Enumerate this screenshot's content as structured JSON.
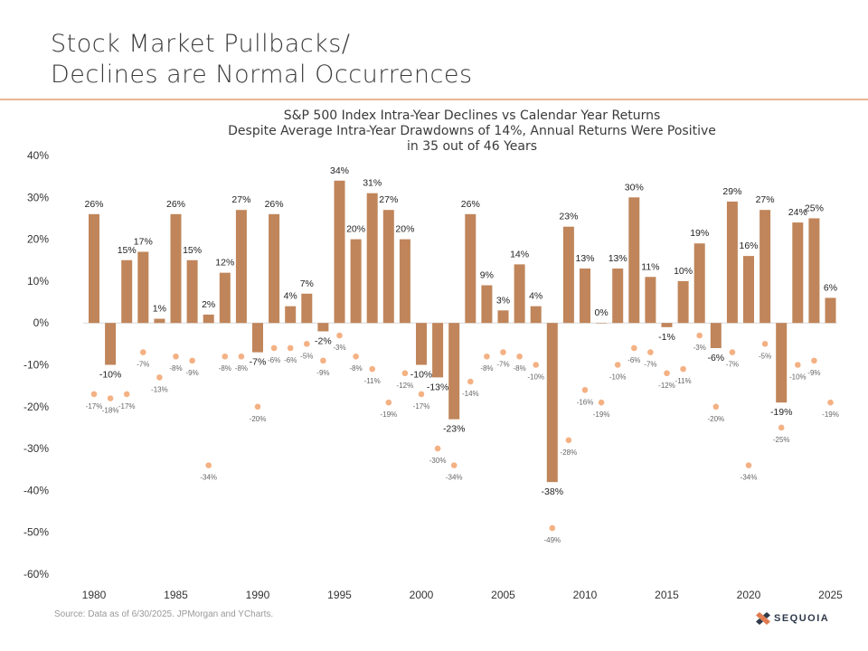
{
  "slide": {
    "title_line1": "Stock Market Pullbacks/",
    "title_line2": "Declines are Normal Occurrences",
    "footnote": "Source: Data as of 6/30/2025. JPMorgan and YCharts.",
    "logo_text": "SEQUOIA",
    "logo_icon": "sequoia-diamond-icon"
  },
  "chart_data": {
    "type": "bar",
    "title": "S&P 500 Index Intra-Year Declines vs Calendar Year Returns",
    "subtitle_line1": "Despite Average Intra-Year Drawdowns of 14%, Annual Returns Were Positive",
    "subtitle_line2": "in 35 out of 46 Years",
    "x": [
      1980,
      1981,
      1982,
      1983,
      1984,
      1985,
      1986,
      1987,
      1988,
      1989,
      1990,
      1991,
      1992,
      1993,
      1994,
      1995,
      1996,
      1997,
      1998,
      1999,
      2000,
      2001,
      2002,
      2003,
      2004,
      2005,
      2006,
      2007,
      2008,
      2009,
      2010,
      2011,
      2012,
      2013,
      2014,
      2015,
      2016,
      2017,
      2018,
      2019,
      2020,
      2021,
      2022,
      2023,
      2024,
      2025
    ],
    "x_tick_labels": [
      "1980",
      "1985",
      "1990",
      "1995",
      "2000",
      "2005",
      "2010",
      "2015",
      "2020",
      "2025"
    ],
    "x_tick_values": [
      1980,
      1985,
      1990,
      1995,
      2000,
      2005,
      2010,
      2015,
      2020,
      2025
    ],
    "series": [
      {
        "kind": "bar",
        "color": "#c0855a",
        "values": [
          26,
          -10,
          15,
          17,
          1,
          26,
          15,
          2,
          12,
          27,
          -7,
          26,
          4,
          7,
          -2,
          34,
          20,
          31,
          27,
          20,
          -10,
          -13,
          -23,
          26,
          9,
          3,
          14,
          4,
          -38,
          23,
          13,
          0,
          13,
          30,
          11,
          -1,
          10,
          19,
          -6,
          29,
          16,
          27,
          -19,
          24,
          25,
          6
        ],
        "labels": [
          "26%",
          "-10%",
          "15%",
          "17%",
          "1%",
          "26%",
          "15%",
          "2%",
          "12%",
          "27%",
          "-7%",
          "26%",
          "4%",
          "7%",
          "-2%",
          "34%",
          "20%",
          "31%",
          "27%",
          "20%",
          "-10%",
          "-13%",
          "-23%",
          "26%",
          "9%",
          "3%",
          "14%",
          "4%",
          "-38%",
          "23%",
          "13%",
          "0%",
          "13%",
          "30%",
          "11%",
          "-1%",
          "10%",
          "19%",
          "-6%",
          "29%",
          "16%",
          "27%",
          "-19%",
          "24%",
          "25%",
          "6%"
        ]
      },
      {
        "kind": "scatter",
        "color": "#f4b183",
        "values": [
          -17,
          -18,
          -17,
          -7,
          -13,
          -8,
          -9,
          -34,
          -8,
          -8,
          -20,
          -6,
          -6,
          -5,
          -9,
          -3,
          -8,
          -11,
          -19,
          -12,
          -17,
          -30,
          -34,
          -14,
          -8,
          -7,
          -8,
          -10,
          -49,
          -28,
          -16,
          -19,
          -10,
          -6,
          -7,
          -12,
          -11,
          -3,
          -20,
          -7,
          -34,
          -5,
          -25,
          -10,
          -9,
          -19
        ],
        "labels": [
          "-17%",
          "-18%",
          "-17%",
          "-7%",
          "-13%",
          "-8%",
          "-9%",
          "-34%",
          "-8%",
          "-8%",
          "-20%",
          "-6%",
          "-6%",
          "-5%",
          "-9%",
          "-3%",
          "-8%",
          "-11%",
          "-19%",
          "-12%",
          "-17%",
          "-30%",
          "-34%",
          "-14%",
          "-8%",
          "-7%",
          "-8%",
          "-10%",
          "-49%",
          "-28%",
          "-16%",
          "-19%",
          "-10%",
          "-6%",
          "-7%",
          "-12%",
          "-11%",
          "-3%",
          "-20%",
          "-7%",
          "-34%",
          "-5%",
          "-25%",
          "-10%",
          "-9%",
          "-19%"
        ]
      }
    ],
    "ylim": [
      -60,
      40
    ],
    "y_ticks": [
      40,
      30,
      20,
      10,
      0,
      -10,
      -20,
      -30,
      -40,
      -50,
      -60
    ],
    "y_tick_labels": [
      "40%",
      "30%",
      "20%",
      "10%",
      "0%",
      "-10%",
      "-20%",
      "-30%",
      "-40%",
      "-50%",
      "-60%"
    ],
    "grid": false
  }
}
